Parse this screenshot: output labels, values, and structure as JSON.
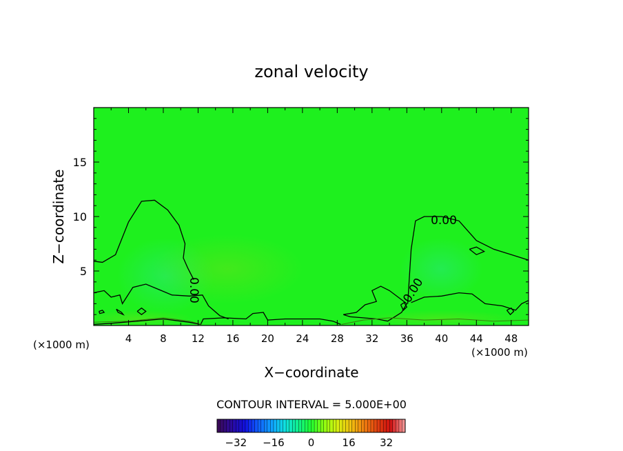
{
  "chart_data": {
    "type": "contour",
    "title": "zonal velocity",
    "xlabel": "X−coordinate",
    "ylabel": "Z−coordinate",
    "x_unit_left": "(×1000 m)",
    "x_unit_right": "(×1000 m)",
    "xlim": [
      0,
      50
    ],
    "ylim": [
      0,
      20
    ],
    "x_ticks": [
      4,
      8,
      12,
      16,
      20,
      24,
      28,
      32,
      36,
      40,
      44,
      48
    ],
    "x_tick_labels": [
      "4",
      "8",
      "12",
      "16",
      "20",
      "24",
      "28",
      "32",
      "36",
      "40",
      "44",
      "48"
    ],
    "y_ticks": [
      5,
      10,
      15
    ],
    "y_tick_labels": [
      "5",
      "10",
      "15"
    ],
    "contour_interval_text": "CONTOUR INTERVAL = 5.000E+00",
    "contour_labels": [
      "0.00",
      "0.00",
      "0.00"
    ],
    "colorbar": {
      "min": -40,
      "max": 40,
      "ticks": [
        -32,
        -16,
        0,
        16,
        32
      ],
      "tick_labels": [
        "−32",
        "−16",
        "0",
        "16",
        "32"
      ],
      "colors": [
        "#3a0a5a",
        "#2a0aa0",
        "#1010e0",
        "#1060ff",
        "#10a0ff",
        "#10e0e0",
        "#10f090",
        "#20ff30",
        "#90ff10",
        "#d8f010",
        "#f0c010",
        "#f08010",
        "#e04010",
        "#d01010",
        "#f09090"
      ]
    },
    "background_color": "#1ef01e",
    "contours_zero": [
      [
        [
          0,
          5.9
        ],
        [
          1,
          5.8
        ],
        [
          2.5,
          6.5
        ],
        [
          4,
          9.5
        ],
        [
          5.5,
          11.4
        ],
        [
          7,
          11.5
        ],
        [
          8.5,
          10.6
        ],
        [
          9.8,
          9.2
        ],
        [
          10.5,
          7.5
        ],
        [
          10.3,
          6.2
        ],
        [
          10.8,
          5.3
        ],
        [
          11.5,
          4.2
        ]
      ],
      [
        [
          0,
          3.0
        ],
        [
          1.2,
          3.2
        ],
        [
          2,
          2.6
        ],
        [
          3,
          2.8
        ],
        [
          3.3,
          2.0
        ],
        [
          4.5,
          3.5
        ],
        [
          6,
          3.8
        ],
        [
          7.5,
          3.3
        ],
        [
          9,
          2.8
        ],
        [
          11,
          2.7
        ],
        [
          12.5,
          2.8
        ],
        [
          13.2,
          1.8
        ],
        [
          14.5,
          0.9
        ],
        [
          15.5,
          0.6
        ]
      ],
      [
        [
          0,
          0.1
        ],
        [
          2,
          0.2
        ],
        [
          5,
          0.4
        ],
        [
          8,
          0.6
        ],
        [
          11,
          0.3
        ],
        [
          12.3,
          0.1
        ],
        [
          12.6,
          0.6
        ],
        [
          15,
          0.7
        ],
        [
          17.5,
          0.6
        ],
        [
          18.3,
          1.1
        ],
        [
          19.5,
          1.2
        ],
        [
          20,
          0.5
        ],
        [
          22,
          0.6
        ],
        [
          24,
          0.6
        ],
        [
          26,
          0.6
        ],
        [
          27.5,
          0.4
        ],
        [
          28.4,
          0.1
        ]
      ],
      [
        [
          28.7,
          1.0
        ],
        [
          30.2,
          1.2
        ],
        [
          31.2,
          1.9
        ],
        [
          32.5,
          2.2
        ],
        [
          32,
          3.2
        ],
        [
          33,
          3.6
        ],
        [
          34,
          3.2
        ],
        [
          35,
          2.6
        ],
        [
          36,
          2.0
        ],
        [
          35.4,
          1.2
        ],
        [
          34.6,
          0.8
        ],
        [
          33.8,
          0.4
        ],
        [
          32.5,
          0.6
        ],
        [
          31,
          0.7
        ],
        [
          29.5,
          0.8
        ],
        [
          28.7,
          1.0
        ]
      ],
      [
        [
          36.1,
          2.0
        ],
        [
          36.5,
          7.0
        ],
        [
          37,
          9.6
        ],
        [
          38,
          10.0
        ],
        [
          40,
          10.0
        ],
        [
          42,
          9.6
        ],
        [
          44,
          7.8
        ],
        [
          46,
          7.0
        ],
        [
          48,
          6.5
        ],
        [
          50,
          6.0
        ]
      ],
      [
        [
          36.5,
          2.1
        ],
        [
          38,
          2.6
        ],
        [
          40,
          2.7
        ],
        [
          42,
          3.0
        ],
        [
          43.5,
          2.9
        ],
        [
          45,
          2.0
        ],
        [
          47,
          1.8
        ],
        [
          48.5,
          1.4
        ],
        [
          49.2,
          2.0
        ],
        [
          50,
          2.3
        ]
      ],
      [
        [
          43.2,
          7.0
        ],
        [
          44,
          7.2
        ],
        [
          44.9,
          6.8
        ],
        [
          44,
          6.5
        ],
        [
          43.2,
          7.0
        ]
      ],
      [
        [
          2.6,
          1.5
        ],
        [
          3.2,
          1.2
        ],
        [
          3.4,
          1.0
        ],
        [
          2.8,
          1.2
        ],
        [
          2.6,
          1.5
        ]
      ],
      [
        [
          0.6,
          1.3
        ],
        [
          1.0,
          1.4
        ],
        [
          1.2,
          1.2
        ],
        [
          0.7,
          1.1
        ],
        [
          0.6,
          1.3
        ]
      ],
      [
        [
          5,
          1.3
        ],
        [
          5.5,
          1.6
        ],
        [
          6,
          1.3
        ],
        [
          5.5,
          1.0
        ],
        [
          5,
          1.3
        ]
      ],
      [
        [
          47.5,
          1.4
        ],
        [
          48,
          1.6
        ],
        [
          48.3,
          1.3
        ],
        [
          47.9,
          1.0
        ],
        [
          47.5,
          1.4
        ]
      ],
      [
        [
          35.3,
          1.9
        ],
        [
          35.7,
          2.1
        ],
        [
          36,
          1.7
        ],
        [
          35.6,
          1.4
        ],
        [
          35.3,
          1.9
        ]
      ]
    ],
    "contours_surface": [
      [
        [
          0,
          0.3
        ],
        [
          4,
          0.4
        ],
        [
          8,
          0.7
        ],
        [
          11,
          0.4
        ],
        [
          12.4,
          0.1
        ]
      ],
      [
        [
          28.5,
          0.1
        ],
        [
          31,
          0.5
        ],
        [
          34,
          0.7
        ],
        [
          38,
          0.5
        ],
        [
          42,
          0.6
        ],
        [
          46,
          0.4
        ],
        [
          50,
          0.5
        ]
      ]
    ]
  }
}
